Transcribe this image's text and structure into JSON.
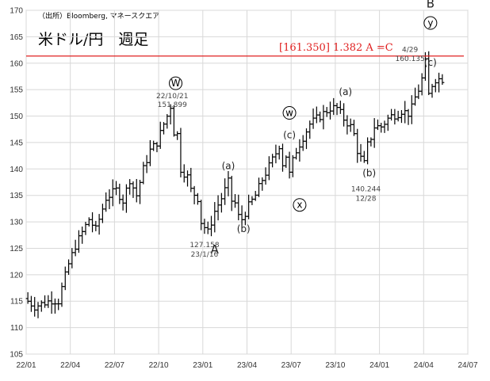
{
  "chart_data": {
    "type": "candlestick-ohlc-bar",
    "title": "米ドル/円　週足",
    "source": "（出所）Bloomberg, マネースクエア",
    "ylim": [
      105,
      170
    ],
    "yticks": [
      105,
      110,
      115,
      120,
      125,
      130,
      135,
      140,
      145,
      150,
      155,
      160,
      165,
      170
    ],
    "xticks": [
      "22/01",
      "22/04",
      "22/07",
      "22/10",
      "23/01",
      "23/04",
      "23/07",
      "23/10",
      "24/01",
      "24/04",
      "24/07"
    ],
    "xrange_weeks": [
      0,
      130
    ],
    "grid": true,
    "hline": {
      "value": 161.35,
      "label": "[161.350] 1.382 A =C",
      "color": "#e02020"
    },
    "series_anchors": [
      [
        0,
        115.5
      ],
      [
        3,
        114.0
      ],
      [
        8,
        115.2
      ],
      [
        10,
        115.0
      ],
      [
        11,
        117.5
      ],
      [
        13,
        122.0
      ],
      [
        15,
        125.5
      ],
      [
        17,
        128.0
      ],
      [
        19,
        130.5
      ],
      [
        21,
        128.5
      ],
      [
        24,
        134.5
      ],
      [
        27,
        136.0
      ],
      [
        29,
        134.0
      ],
      [
        31,
        138.0
      ],
      [
        33,
        135.0
      ],
      [
        35,
        140.0
      ],
      [
        37,
        143.5
      ],
      [
        39,
        145.0
      ],
      [
        41,
        148.5
      ],
      [
        42,
        150.0
      ],
      [
        43,
        151.9
      ],
      [
        44,
        147.0
      ],
      [
        45,
        146.5
      ],
      [
        46,
        140.0
      ],
      [
        48,
        138.5
      ],
      [
        49,
        136.0
      ],
      [
        51,
        134.5
      ],
      [
        52,
        130.0
      ],
      [
        53,
        129.0
      ],
      [
        54,
        128.0
      ],
      [
        55,
        130.0
      ],
      [
        56,
        132.0
      ],
      [
        58,
        134.5
      ],
      [
        60,
        137.5
      ],
      [
        61,
        134.0
      ],
      [
        62,
        133.5
      ],
      [
        63,
        131.0
      ],
      [
        64,
        130.5
      ],
      [
        66,
        133.0
      ],
      [
        68,
        135.0
      ],
      [
        70,
        138.0
      ],
      [
        72,
        140.5
      ],
      [
        74,
        143.0
      ],
      [
        75,
        144.5
      ],
      [
        76,
        141.0
      ],
      [
        77,
        142.5
      ],
      [
        78,
        139.0
      ],
      [
        79,
        141.5
      ],
      [
        80,
        143.5
      ],
      [
        82,
        146.0
      ],
      [
        84,
        148.5
      ],
      [
        86,
        149.5
      ],
      [
        88,
        150.5
      ],
      [
        90,
        151.5
      ],
      [
        92,
        151.5
      ],
      [
        94,
        149.5
      ],
      [
        96,
        148.0
      ],
      [
        97,
        146.5
      ],
      [
        98,
        143.5
      ],
      [
        99,
        142.0
      ],
      [
        100,
        141.0
      ],
      [
        101,
        144.5
      ],
      [
        102,
        146.0
      ],
      [
        103,
        148.0
      ],
      [
        105,
        148.0
      ],
      [
        107,
        149.5
      ],
      [
        108,
        150.0
      ],
      [
        110,
        150.5
      ],
      [
        111,
        151.0
      ],
      [
        113,
        150.5
      ],
      [
        114,
        151.5
      ],
      [
        115,
        153.5
      ],
      [
        116,
        155.0
      ],
      [
        117,
        157.0
      ],
      [
        118,
        160.1
      ],
      [
        119,
        154.0
      ],
      [
        120,
        156.0
      ],
      [
        121,
        157.0
      ],
      [
        122,
        157.0
      ]
    ],
    "annotations": [
      {
        "id": "w-high",
        "text": "W",
        "circled": true,
        "x": 44,
        "y": 155.6
      },
      {
        "id": "w-date",
        "text": "22/10/21",
        "x": 43,
        "y": 153.4,
        "small": true
      },
      {
        "id": "w-val",
        "text": "151.899",
        "x": 43,
        "y": 151.7,
        "small": true
      },
      {
        "id": "a-label",
        "text": "A",
        "x": 55.5,
        "y": 124,
        "big": true
      },
      {
        "id": "a-val",
        "text": "127.158",
        "x": 52.5,
        "y": 125.2,
        "small": true
      },
      {
        "id": "a-date",
        "text": "23/1/16",
        "x": 52.5,
        "y": 123.4,
        "small": true
      },
      {
        "id": "a1",
        "text": "(a)",
        "x": 59.5,
        "y": 140.0
      },
      {
        "id": "b1",
        "text": "(b)",
        "x": 64,
        "y": 128.1
      },
      {
        "id": "w2",
        "text": "w",
        "circled": true,
        "x": 77.5,
        "y": 150.0
      },
      {
        "id": "c1",
        "text": "(c)",
        "x": 77.5,
        "y": 145.8
      },
      {
        "id": "x2",
        "text": "x",
        "circled": true,
        "x": 80.5,
        "y": 132.6
      },
      {
        "id": "a2",
        "text": "(a)",
        "x": 94,
        "y": 154.0
      },
      {
        "id": "b2",
        "text": "(b)",
        "x": 101,
        "y": 138.6
      },
      {
        "id": "b2-val",
        "text": "140.244",
        "x": 100,
        "y": 135.8,
        "small": true
      },
      {
        "id": "b2-date",
        "text": "12/28",
        "x": 100,
        "y": 134.0,
        "small": true
      },
      {
        "id": "y-label",
        "text": "y",
        "circled": true,
        "x": 119,
        "y": 167.0
      },
      {
        "id": "B-label",
        "text": "B",
        "x": 119,
        "y": 170.5,
        "big": true
      },
      {
        "id": "c2",
        "text": "(c)",
        "x": 119,
        "y": 159.5
      },
      {
        "id": "c2-date",
        "text": "4/29",
        "x": 113,
        "y": 162.1,
        "small": true
      },
      {
        "id": "c2-val",
        "text": "160.135",
        "x": 113,
        "y": 160.4,
        "small": true
      }
    ]
  }
}
